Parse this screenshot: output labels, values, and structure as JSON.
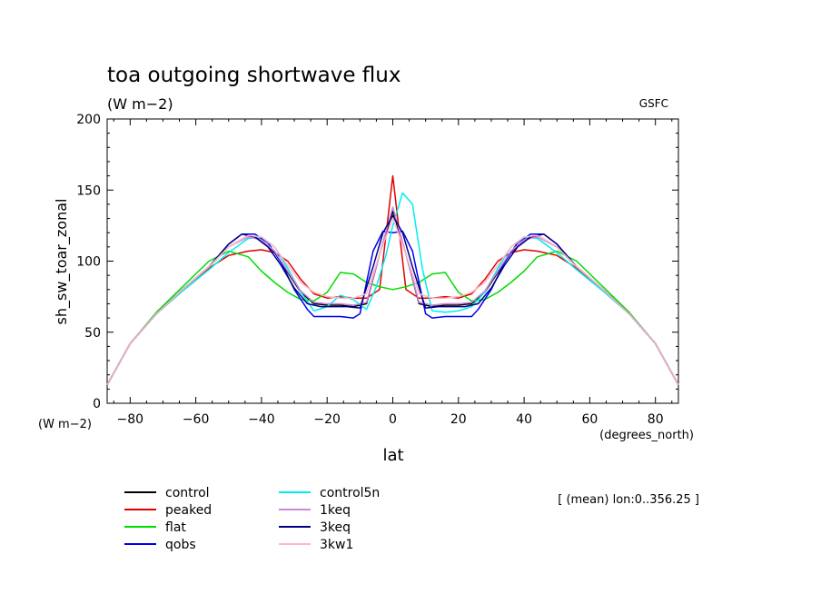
{
  "chart_data": {
    "type": "line",
    "title": "toa outgoing shortwave flux",
    "units": "(W m−2)",
    "source": "GSFC",
    "ylabel": "sh_sw_toar_zonal",
    "yunits": "(W m−2)",
    "xlabel": "lat",
    "xunits": "(degrees_north)",
    "note": "[ (mean) lon:0..356.25 ]",
    "xlim": [
      -87,
      87
    ],
    "ylim": [
      0,
      200
    ],
    "xticks": [
      -80,
      -60,
      -40,
      -20,
      0,
      20,
      40,
      60,
      80
    ],
    "yticks": [
      0,
      50,
      100,
      150,
      200
    ],
    "series": [
      {
        "name": "control",
        "color": "#000000",
        "x": [
          -87,
          -80,
          -72,
          -64,
          -56,
          -50,
          -44,
          -40,
          -36,
          -32,
          -28,
          -24,
          -20,
          -16,
          -12,
          -8,
          -4,
          0,
          4,
          8,
          12,
          16,
          20,
          24,
          28,
          32,
          36,
          40,
          44,
          50,
          56,
          64,
          72,
          80,
          87
        ],
        "y": [
          13,
          42,
          63,
          80,
          96,
          110,
          118,
          115,
          106,
          92,
          78,
          70,
          69,
          69,
          68,
          70,
          105,
          135,
          105,
          70,
          68,
          69,
          69,
          70,
          78,
          92,
          106,
          115,
          118,
          110,
          96,
          80,
          63,
          42,
          13
        ]
      },
      {
        "name": "peaked",
        "color": "#e00000",
        "x": [
          -87,
          -80,
          -72,
          -64,
          -56,
          -50,
          -44,
          -40,
          -36,
          -32,
          -28,
          -24,
          -20,
          -16,
          -12,
          -8,
          -4,
          -2,
          0,
          2,
          4,
          8,
          12,
          16,
          20,
          24,
          28,
          32,
          36,
          40,
          44,
          50,
          56,
          64,
          72,
          80,
          87
        ],
        "y": [
          13,
          42,
          63,
          80,
          95,
          104,
          107,
          108,
          106,
          100,
          87,
          77,
          74,
          75,
          74,
          74,
          80,
          120,
          160,
          120,
          80,
          74,
          74,
          75,
          74,
          77,
          87,
          100,
          106,
          108,
          107,
          104,
          95,
          80,
          63,
          42,
          13
        ]
      },
      {
        "name": "flat",
        "color": "#00dd00",
        "x": [
          -87,
          -80,
          -72,
          -64,
          -56,
          -50,
          -44,
          -40,
          -36,
          -32,
          -28,
          -24,
          -20,
          -16,
          -12,
          -8,
          -4,
          0,
          4,
          8,
          12,
          16,
          20,
          24,
          28,
          32,
          36,
          40,
          44,
          50,
          56,
          64,
          72,
          80,
          87
        ],
        "y": [
          13,
          42,
          64,
          82,
          100,
          107,
          103,
          93,
          85,
          78,
          73,
          72,
          78,
          92,
          91,
          85,
          82,
          80,
          82,
          85,
          91,
          92,
          78,
          72,
          73,
          78,
          85,
          93,
          103,
          107,
          100,
          82,
          64,
          42,
          13
        ]
      },
      {
        "name": "qobs",
        "color": "#0000ee",
        "x": [
          -87,
          -80,
          -72,
          -64,
          -56,
          -50,
          -46,
          -42,
          -38,
          -34,
          -30,
          -26,
          -24,
          -20,
          -16,
          -12,
          -10,
          -6,
          -3,
          0,
          3,
          6,
          10,
          12,
          16,
          20,
          24,
          26,
          30,
          34,
          38,
          42,
          46,
          50,
          56,
          64,
          72,
          80,
          87
        ],
        "y": [
          13,
          42,
          63,
          80,
          96,
          112,
          119,
          119,
          113,
          99,
          80,
          66,
          61,
          61,
          61,
          60,
          63,
          107,
          121,
          120,
          121,
          107,
          63,
          60,
          61,
          61,
          61,
          66,
          80,
          99,
          113,
          119,
          119,
          112,
          96,
          80,
          63,
          42,
          13
        ]
      },
      {
        "name": "control5n",
        "color": "#00eeee",
        "x": [
          -87,
          -80,
          -72,
          -64,
          -56,
          -50,
          -44,
          -40,
          -36,
          -32,
          -28,
          -24,
          -20,
          -16,
          -12,
          -8,
          -5,
          -2,
          0,
          3,
          6,
          9,
          12,
          16,
          20,
          24,
          28,
          32,
          36,
          40,
          44,
          50,
          56,
          64,
          72,
          80,
          87
        ],
        "y": [
          13,
          42,
          63,
          79,
          94,
          106,
          116,
          117,
          110,
          95,
          78,
          65,
          68,
          76,
          73,
          66,
          82,
          105,
          125,
          148,
          140,
          95,
          65,
          64,
          65,
          68,
          78,
          95,
          110,
          117,
          116,
          106,
          94,
          79,
          63,
          42,
          13
        ]
      },
      {
        "name": "1keq",
        "color": "#cc88dd",
        "x": [
          -87,
          -80,
          -72,
          -64,
          -56,
          -50,
          -44,
          -40,
          -36,
          -32,
          -28,
          -24,
          -20,
          -16,
          -12,
          -8,
          -4,
          0,
          4,
          8,
          12,
          16,
          20,
          24,
          28,
          32,
          36,
          40,
          44,
          50,
          56,
          64,
          72,
          80,
          87
        ],
        "y": [
          13,
          42,
          63,
          80,
          96,
          110,
          117,
          115,
          107,
          93,
          79,
          71,
          70,
          70,
          69,
          71,
          105,
          138,
          105,
          71,
          69,
          70,
          70,
          71,
          79,
          93,
          107,
          115,
          117,
          110,
          96,
          80,
          63,
          42,
          13
        ]
      },
      {
        "name": "3keq",
        "color": "#000088",
        "x": [
          -87,
          -80,
          -72,
          -64,
          -56,
          -50,
          -46,
          -42,
          -38,
          -34,
          -30,
          -26,
          -22,
          -18,
          -14,
          -10,
          -6,
          -3,
          0,
          3,
          6,
          10,
          14,
          18,
          22,
          26,
          30,
          34,
          38,
          42,
          46,
          50,
          56,
          64,
          72,
          80,
          87
        ],
        "y": [
          13,
          42,
          63,
          80,
          96,
          112,
          119,
          117,
          110,
          97,
          81,
          70,
          68,
          68,
          68,
          67,
          96,
          120,
          132,
          120,
          96,
          67,
          68,
          68,
          68,
          70,
          81,
          97,
          110,
          117,
          119,
          112,
          96,
          80,
          63,
          42,
          13
        ]
      },
      {
        "name": "3kw1",
        "color": "#ffb8c8",
        "x": [
          -87,
          -80,
          -72,
          -64,
          -56,
          -50,
          -44,
          -40,
          -36,
          -32,
          -28,
          -24,
          -20,
          -16,
          -12,
          -8,
          -4,
          0,
          4,
          8,
          12,
          16,
          20,
          24,
          28,
          32,
          36,
          40,
          44,
          50,
          56,
          64,
          72,
          80,
          87
        ],
        "y": [
          13,
          42,
          63,
          80,
          96,
          110,
          118,
          117,
          110,
          97,
          85,
          78,
          75,
          74,
          74,
          77,
          105,
          130,
          105,
          77,
          74,
          74,
          75,
          78,
          85,
          97,
          110,
          117,
          118,
          110,
          96,
          80,
          63,
          42,
          13
        ]
      }
    ]
  }
}
